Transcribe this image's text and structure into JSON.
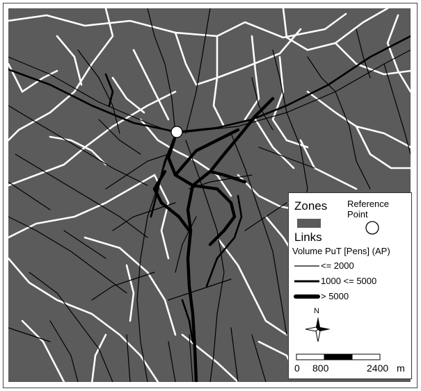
{
  "colors": {
    "zone_fill": "#5b5b5b",
    "zone_boundary": "#ffffff",
    "link_color": "#000000",
    "reference_point_fill": "#ffffff"
  },
  "legend": {
    "zones_label": "Zones",
    "reference_label_line1": "Reference",
    "reference_label_line2": "Point",
    "links_label": "Links",
    "volume_title": "Volume PuT [Pens] (AP)",
    "classes": [
      {
        "label": "<= 2000"
      },
      {
        "label": "1000 <= 5000"
      },
      {
        "label": "> 5000"
      }
    ],
    "north_label": "N",
    "scale": {
      "ticks": [
        "0",
        "800",
        "2400"
      ],
      "unit": "m",
      "tick_values": [
        0,
        800,
        2400
      ]
    }
  }
}
